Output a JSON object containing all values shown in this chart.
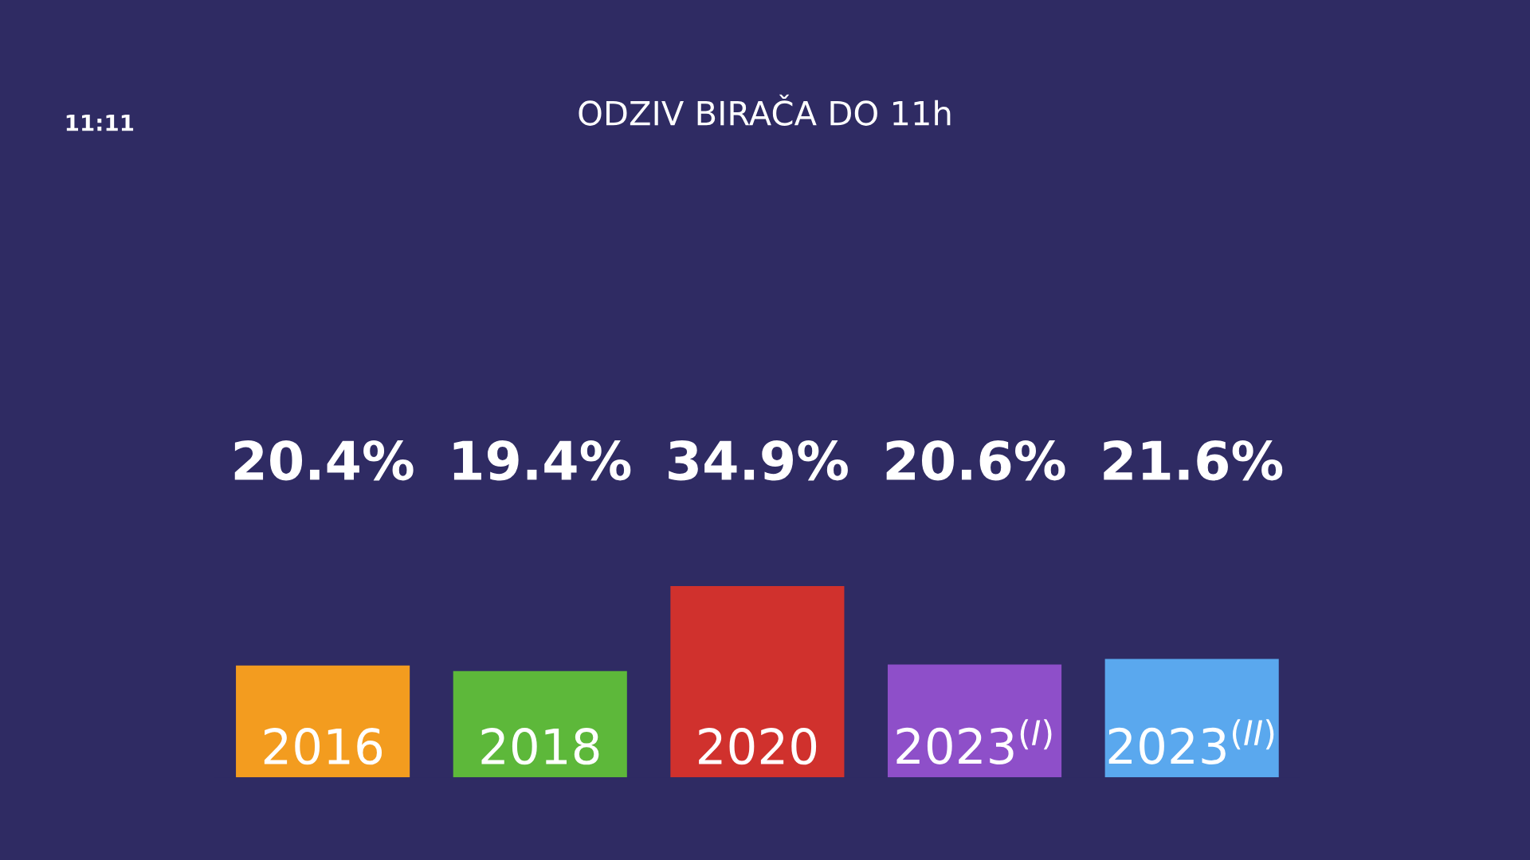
{
  "chart_data": {
    "type": "bar",
    "title": "ODZIV BIRAČA DO 11h",
    "categories": [
      "2016",
      "2018",
      "2020",
      "2023$^{(I)}$",
      "2023$^{(II)}$"
    ],
    "values": [
      20.4,
      19.4,
      34.9,
      20.6,
      21.6
    ],
    "value_labels": [
      "20.4%",
      "19.4%",
      "34.9%",
      "20.6%",
      "21.6%"
    ],
    "colors": [
      "#f39c1f",
      "#5db83a",
      "#d0312d",
      "#8e4fc9",
      "#5aa8ee"
    ],
    "annotations": [
      "11:11"
    ]
  }
}
